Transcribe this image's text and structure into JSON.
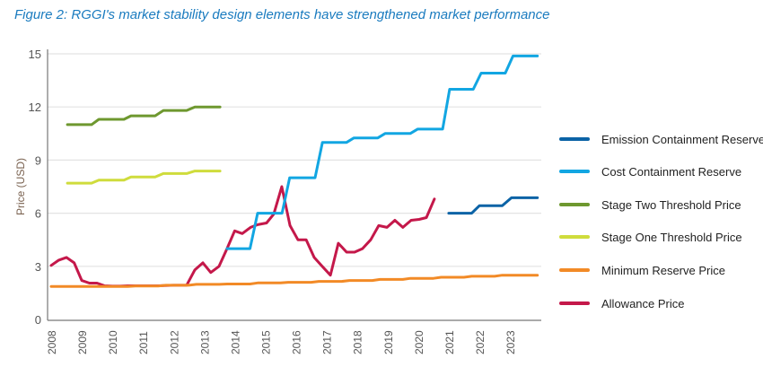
{
  "title": "Figure 2: RGGI's market stability design elements have strengthened market performance",
  "chart_data": {
    "type": "line",
    "title": "Figure 2: RGGI's market stability design elements have strengthened market performance",
    "xlabel": "",
    "ylabel": "Price (USD)",
    "xlim": [
      2008,
      2024
    ],
    "ylim": [
      0,
      15
    ],
    "yticks": [
      0,
      3,
      6,
      9,
      12,
      15
    ],
    "xticks": [
      "2008",
      "2009",
      "2010",
      "2011",
      "2012",
      "2013",
      "2014",
      "2015",
      "2016",
      "2017",
      "2018",
      "2019",
      "2020",
      "2021",
      "2022",
      "2023"
    ],
    "grid": true,
    "legend_position": "right",
    "series": [
      {
        "name": "Emission Containment Reserve",
        "color": "#0b63a6",
        "points": [
          [
            2021.0,
            6.0
          ],
          [
            2021.75,
            6.0
          ],
          [
            2022.0,
            6.42
          ],
          [
            2022.75,
            6.42
          ],
          [
            2023.05,
            6.87
          ],
          [
            2023.9,
            6.87
          ]
        ]
      },
      {
        "name": "Cost Containment Reserve",
        "color": "#12a6e2",
        "points": [
          [
            2013.75,
            4.0
          ],
          [
            2014.5,
            4.0
          ],
          [
            2014.75,
            6.0
          ],
          [
            2015.55,
            6.0
          ],
          [
            2015.8,
            8.0
          ],
          [
            2016.63,
            8.0
          ],
          [
            2016.87,
            10.0
          ],
          [
            2017.66,
            10.0
          ],
          [
            2017.9,
            10.25
          ],
          [
            2018.68,
            10.25
          ],
          [
            2018.92,
            10.5
          ],
          [
            2019.74,
            10.5
          ],
          [
            2019.98,
            10.75
          ],
          [
            2020.8,
            10.75
          ],
          [
            2021.03,
            13.0
          ],
          [
            2021.8,
            13.0
          ],
          [
            2022.06,
            13.91
          ],
          [
            2022.85,
            13.91
          ],
          [
            2023.1,
            14.88
          ],
          [
            2023.9,
            14.88
          ]
        ]
      },
      {
        "name": "Stage Two Threshold Price",
        "color": "#6e982f",
        "points": [
          [
            2008.53,
            11.0
          ],
          [
            2009.32,
            11.0
          ],
          [
            2009.56,
            11.3
          ],
          [
            2010.38,
            11.3
          ],
          [
            2010.61,
            11.5
          ],
          [
            2011.4,
            11.5
          ],
          [
            2011.67,
            11.8
          ],
          [
            2012.43,
            11.8
          ],
          [
            2012.7,
            12.0
          ],
          [
            2013.52,
            12.0
          ]
        ]
      },
      {
        "name": "Stage One Threshold Price",
        "color": "#cfdc3c",
        "points": [
          [
            2008.53,
            7.7
          ],
          [
            2009.32,
            7.7
          ],
          [
            2009.56,
            7.87
          ],
          [
            2010.38,
            7.87
          ],
          [
            2010.61,
            8.04
          ],
          [
            2011.4,
            8.04
          ],
          [
            2011.67,
            8.24
          ],
          [
            2012.43,
            8.24
          ],
          [
            2012.7,
            8.38
          ],
          [
            2013.52,
            8.38
          ]
        ]
      },
      {
        "name": "Minimum Reserve Price",
        "color": "#f28a26",
        "points": [
          [
            2008.0,
            1.86
          ],
          [
            2010.5,
            1.86
          ],
          [
            2010.75,
            1.89
          ],
          [
            2011.5,
            1.89
          ],
          [
            2011.75,
            1.93
          ],
          [
            2012.5,
            1.93
          ],
          [
            2012.75,
            1.98
          ],
          [
            2013.5,
            1.98
          ],
          [
            2013.75,
            2.0
          ],
          [
            2014.5,
            2.0
          ],
          [
            2014.75,
            2.06
          ],
          [
            2015.5,
            2.06
          ],
          [
            2015.75,
            2.1
          ],
          [
            2016.5,
            2.1
          ],
          [
            2016.75,
            2.15
          ],
          [
            2017.5,
            2.15
          ],
          [
            2017.75,
            2.2
          ],
          [
            2018.5,
            2.2
          ],
          [
            2018.75,
            2.26
          ],
          [
            2019.5,
            2.26
          ],
          [
            2019.75,
            2.32
          ],
          [
            2020.5,
            2.32
          ],
          [
            2020.75,
            2.38
          ],
          [
            2021.5,
            2.38
          ],
          [
            2021.75,
            2.44
          ],
          [
            2022.5,
            2.44
          ],
          [
            2022.75,
            2.5
          ],
          [
            2023.9,
            2.5
          ]
        ]
      },
      {
        "name": "Allowance Price",
        "color": "#c4184a",
        "points": [
          [
            2008.0,
            3.05
          ],
          [
            2008.25,
            3.35
          ],
          [
            2008.5,
            3.5
          ],
          [
            2008.75,
            3.2
          ],
          [
            2009.0,
            2.2
          ],
          [
            2009.25,
            2.05
          ],
          [
            2009.5,
            2.05
          ],
          [
            2009.75,
            1.9
          ],
          [
            2010.0,
            1.88
          ],
          [
            2010.25,
            1.88
          ],
          [
            2010.5,
            1.9
          ],
          [
            2011.0,
            1.9
          ],
          [
            2011.5,
            1.9
          ],
          [
            2012.0,
            1.93
          ],
          [
            2012.43,
            1.93
          ],
          [
            2012.7,
            2.8
          ],
          [
            2012.96,
            3.2
          ],
          [
            2013.22,
            2.65
          ],
          [
            2013.49,
            3.0
          ],
          [
            2013.75,
            4.0
          ],
          [
            2014.0,
            5.0
          ],
          [
            2014.25,
            4.85
          ],
          [
            2014.52,
            5.2
          ],
          [
            2014.75,
            5.35
          ],
          [
            2015.04,
            5.45
          ],
          [
            2015.28,
            5.95
          ],
          [
            2015.54,
            7.5
          ],
          [
            2015.81,
            5.3
          ],
          [
            2016.07,
            4.5
          ],
          [
            2016.34,
            4.5
          ],
          [
            2016.6,
            3.5
          ],
          [
            2016.86,
            3.0
          ],
          [
            2017.13,
            2.5
          ],
          [
            2017.39,
            4.3
          ],
          [
            2017.66,
            3.8
          ],
          [
            2017.92,
            3.8
          ],
          [
            2018.18,
            4.0
          ],
          [
            2018.45,
            4.5
          ],
          [
            2018.71,
            5.3
          ],
          [
            2018.98,
            5.2
          ],
          [
            2019.24,
            5.6
          ],
          [
            2019.5,
            5.2
          ],
          [
            2019.77,
            5.6
          ],
          [
            2020.03,
            5.65
          ],
          [
            2020.27,
            5.75
          ],
          [
            2020.53,
            6.8
          ]
        ]
      }
    ]
  }
}
